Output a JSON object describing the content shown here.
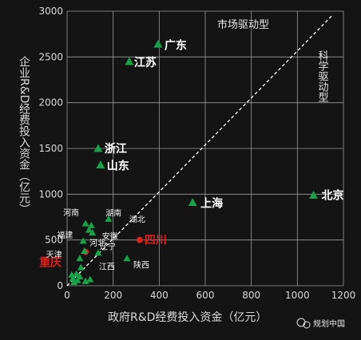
{
  "chart_data": {
    "type": "scatter",
    "xlabel": "政府R&D经费投入资金（亿元）",
    "ylabel": "企业R&D经费投入资金（亿元）",
    "xlim": [
      0,
      1200
    ],
    "ylim": [
      0,
      3000
    ],
    "x_ticks": [
      "0",
      "200",
      "400",
      "600",
      "800",
      "1000",
      "1200"
    ],
    "y_ticks": [
      "0",
      "500",
      "1000",
      "1500",
      "2000",
      "2500",
      "3000"
    ],
    "grid": true,
    "reference_line": {
      "from": [
        0,
        0
      ],
      "to": [
        1150,
        2950
      ]
    },
    "region_labels": {
      "upper": "市场驱动型",
      "lower": "科学驱动型"
    },
    "colors": {
      "green": "#16a34a",
      "red": "#e0201a",
      "grid": "#9a9a9a"
    },
    "points": [
      {
        "name": "广东",
        "x": 395,
        "y": 2640,
        "color": "green",
        "style": "big"
      },
      {
        "name": "江苏",
        "x": 270,
        "y": 2450,
        "color": "green",
        "style": "big"
      },
      {
        "name": "浙江",
        "x": 135,
        "y": 1500,
        "color": "green",
        "style": "big"
      },
      {
        "name": "山东",
        "x": 145,
        "y": 1320,
        "color": "green",
        "style": "big"
      },
      {
        "name": "上海",
        "x": 545,
        "y": 910,
        "color": "green",
        "style": "big"
      },
      {
        "name": "北京",
        "x": 1070,
        "y": 990,
        "color": "green",
        "style": "big"
      },
      {
        "name": "四川",
        "x": 315,
        "y": 500,
        "color": "red",
        "style": "red"
      },
      {
        "name": "重庆",
        "x": 80,
        "y": 370,
        "color": "red",
        "style": "red"
      },
      {
        "name": "河南",
        "x": 80,
        "y": 680,
        "color": "green",
        "style": "small"
      },
      {
        "name": "湖南",
        "x": 105,
        "y": 660,
        "color": "green",
        "style": "small"
      },
      {
        "name": "湖北",
        "x": 180,
        "y": 730,
        "color": "green",
        "style": "small"
      },
      {
        "name": "福建",
        "x": 95,
        "y": 610,
        "color": "green",
        "style": "small"
      },
      {
        "name": "安徽",
        "x": 110,
        "y": 580,
        "color": "green",
        "style": "small"
      },
      {
        "name": "河北",
        "x": 70,
        "y": 490,
        "color": "green",
        "style": "small"
      },
      {
        "name": "天津",
        "x": 75,
        "y": 380,
        "color": "green",
        "style": "small"
      },
      {
        "name": "辽宁",
        "x": 135,
        "y": 360,
        "color": "green",
        "style": "small"
      },
      {
        "name": "江西",
        "x": 55,
        "y": 300,
        "color": "green",
        "style": "small"
      },
      {
        "name": "陕西",
        "x": 260,
        "y": 300,
        "color": "green",
        "style": "small"
      }
    ],
    "unlabeled_points": [
      {
        "x": 25,
        "y": 80
      },
      {
        "x": 40,
        "y": 130
      },
      {
        "x": 30,
        "y": 40
      },
      {
        "x": 55,
        "y": 100
      },
      {
        "x": 80,
        "y": 50
      },
      {
        "x": 100,
        "y": 70
      },
      {
        "x": 60,
        "y": 200
      },
      {
        "x": 20,
        "y": 120
      },
      {
        "x": 45,
        "y": 60
      }
    ]
  },
  "watermark": {
    "text": "规划中国"
  }
}
